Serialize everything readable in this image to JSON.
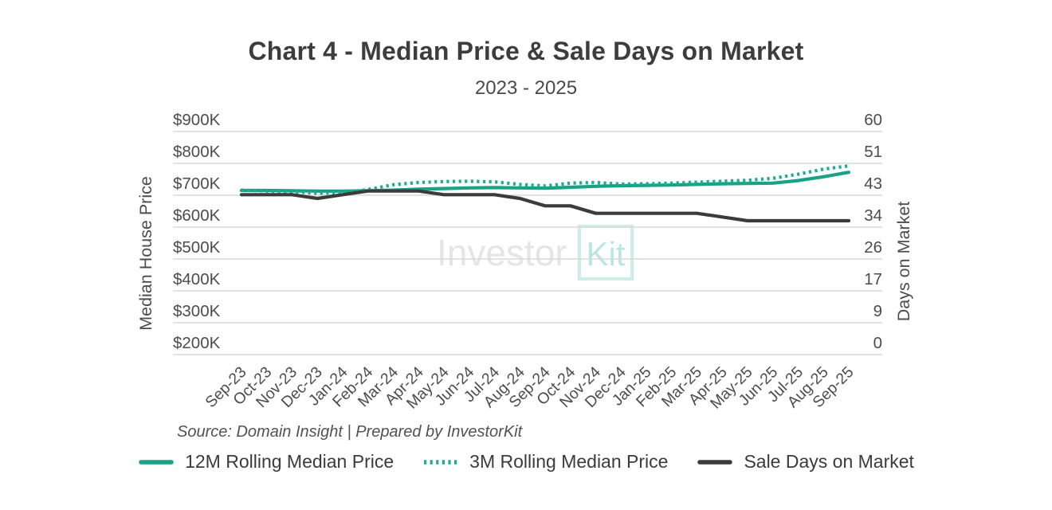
{
  "header": {
    "title": "Chart 4 - Median Price & Sale Days on Market",
    "subtitle": "2023 - 2025"
  },
  "source_note": "Source: Domain Insight | Prepared by InvestorKit",
  "watermark": {
    "text_left": "Investor",
    "text_boxed": "Kit"
  },
  "legend": {
    "position": "bottom",
    "items": [
      {
        "label": "12M Rolling Median Price",
        "style": "solid",
        "color": "#19A286"
      },
      {
        "label": "3M Rolling Median Price",
        "style": "dotted",
        "color": "#1CAD93"
      },
      {
        "label": "Sale Days on Market",
        "style": "solid",
        "color": "#3B3B3B"
      }
    ]
  },
  "colors": {
    "gridline": "#D9D9D9",
    "tick_text": "#4C4C4C",
    "watermark_gray": "#8C8C8C",
    "watermark_teal": "#1CAD93"
  },
  "chart_data": {
    "type": "line",
    "title": "Chart 4 - Median Price & Sale Days on Market",
    "subtitle": "2023 - 2025",
    "grid": "horizontal",
    "legend_position": "bottom",
    "categories": [
      "Sep-23",
      "Oct-23",
      "Nov-23",
      "Dec-23",
      "Jan-24",
      "Feb-24",
      "Mar-24",
      "Apr-24",
      "May-24",
      "Jun-24",
      "Jul-24",
      "Aug-24",
      "Sep-24",
      "Oct-24",
      "Nov-24",
      "Dec-24",
      "Jan-25",
      "Feb-25",
      "Mar-25",
      "Apr-25",
      "May-25",
      "Jun-25",
      "Jul-25",
      "Aug-25",
      "Sep-25"
    ],
    "left_axis": {
      "title": "Median House Price",
      "unit": "USD_thousands",
      "tick_labels": [
        "$900K",
        "$800K",
        "$700K",
        "$600K",
        "$500K",
        "$400K",
        "$300K",
        "$200K"
      ],
      "tick_values": [
        900,
        800,
        700,
        600,
        500,
        400,
        300,
        200
      ],
      "range": [
        200,
        900
      ]
    },
    "right_axis": {
      "title": "Days on Market",
      "unit": "days",
      "tick_labels": [
        "60",
        "51",
        "43",
        "34",
        "26",
        "17",
        "9",
        "0"
      ],
      "tick_values": [
        60,
        51,
        43,
        34,
        26,
        17,
        9,
        0
      ],
      "range": [
        0,
        60
      ]
    },
    "series": [
      {
        "name": "12M Rolling Median Price",
        "axis": "left",
        "style": "solid",
        "color": "#19A286",
        "unit": "K",
        "values": [
          715,
          715,
          714,
          713,
          713,
          714,
          716,
          719,
          721,
          723,
          724,
          723,
          722,
          725,
          728,
          730,
          731,
          732,
          734,
          736,
          737,
          738,
          746,
          758,
          772
        ]
      },
      {
        "name": "3M Rolling Median Price",
        "axis": "left",
        "style": "dotted",
        "color": "#1CAD93",
        "unit": "K",
        "values": [
          716,
          713,
          711,
          706,
          708,
          718,
          733,
          740,
          743,
          744,
          742,
          734,
          729,
          738,
          740,
          735,
          736,
          738,
          741,
          744,
          747,
          753,
          766,
          782,
          792
        ]
      },
      {
        "name": "Sale Days on Market",
        "axis": "right",
        "style": "solid",
        "color": "#3B3B3B",
        "unit": "days",
        "values": [
          43,
          43,
          43,
          42,
          43,
          44,
          44,
          44,
          43,
          43,
          43,
          42,
          40,
          40,
          38,
          38,
          38,
          38,
          38,
          37,
          36,
          36,
          36,
          36,
          36
        ]
      }
    ]
  }
}
